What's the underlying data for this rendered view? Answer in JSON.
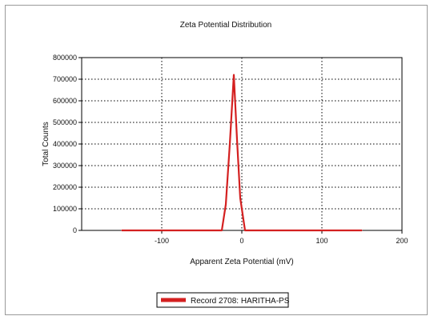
{
  "chart_data": {
    "type": "line",
    "title": "Zeta Potential Distribution",
    "xlabel": "Apparent Zeta Potential (mV)",
    "ylabel": "Total Counts",
    "xlim": [
      -200,
      200
    ],
    "ylim": [
      0,
      800000
    ],
    "xticks": [
      -100,
      0,
      100,
      200
    ],
    "yticks": [
      0,
      100000,
      200000,
      300000,
      400000,
      500000,
      600000,
      700000,
      800000
    ],
    "grid": true,
    "legend_position": "bottom",
    "series": [
      {
        "name": "Record 2708: HARITHA-PS",
        "color": "#d42020",
        "points": [
          [
            -150,
            0
          ],
          [
            -25,
            0
          ],
          [
            -20,
            120000
          ],
          [
            -15,
            400000
          ],
          [
            -10,
            720000
          ],
          [
            -6,
            420000
          ],
          [
            -2,
            150000
          ],
          [
            4,
            0
          ],
          [
            150,
            0
          ]
        ]
      }
    ]
  }
}
